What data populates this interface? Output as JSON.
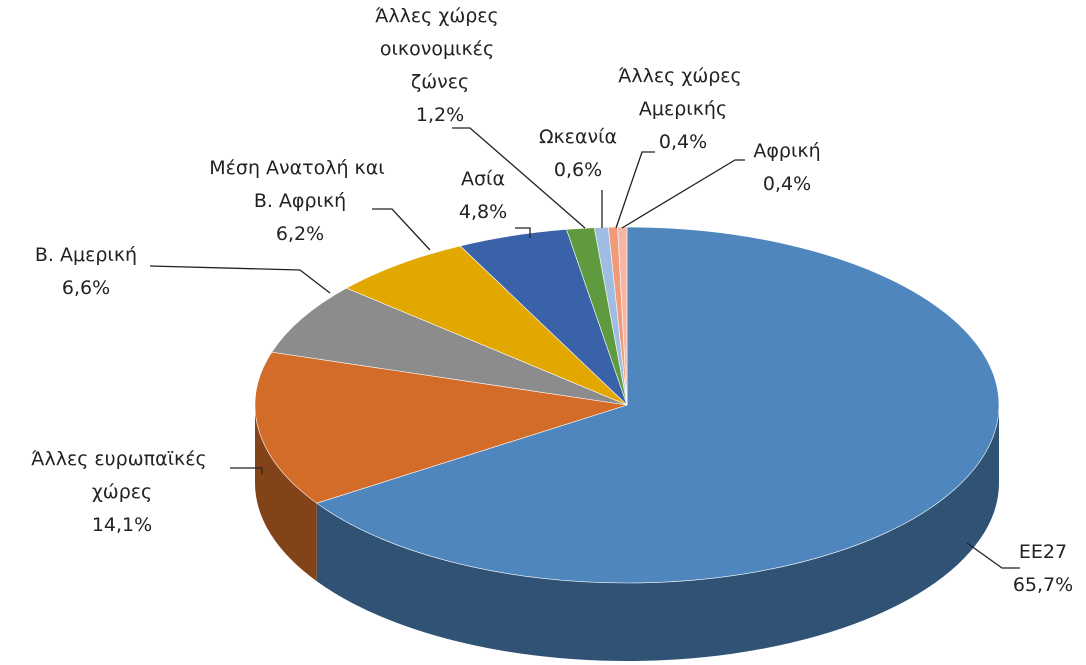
{
  "chart_data": {
    "type": "pie3d",
    "categories": [
      "EE27",
      "Άλλες ευρωπαϊκές χώρες",
      "Β. Αμερική",
      "Μέση Ανατολή και Β. Αφρική",
      "Ασία",
      "Άλλες χώρες οικονομικές ζώνες",
      "Ωκεανία",
      "Άλλες χώρες Αμερικής",
      "Αφρική"
    ],
    "values": [
      65.7,
      14.1,
      6.6,
      6.2,
      4.8,
      1.2,
      0.6,
      0.4,
      0.4
    ],
    "value_labels": [
      "65,7%",
      "14,1%",
      "6,6%",
      "6,2%",
      "4,8%",
      "1,2%",
      "0,6%",
      "0,4%",
      "0,4%"
    ],
    "colors": [
      "#4e86bd",
      "#d36c29",
      "#8c8c8c",
      "#e2a800",
      "#3a62a8",
      "#5f9a3e",
      "#9fbde2",
      "#f09a7a",
      "#f4b7a6"
    ]
  }
}
